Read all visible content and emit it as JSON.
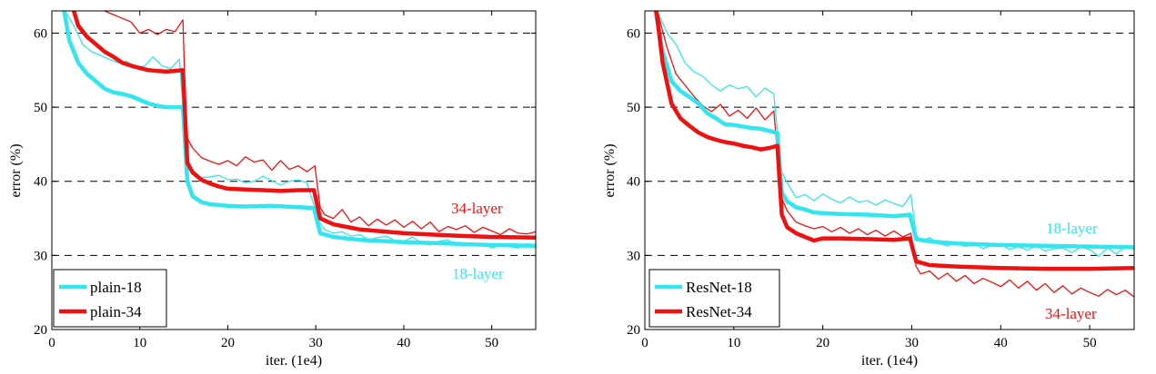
{
  "chart_data": [
    {
      "type": "line",
      "panel": "left",
      "xlabel": "iter. (1e4)",
      "ylabel": "error (%)",
      "xlim": [
        0,
        55
      ],
      "ylim": [
        20,
        63
      ],
      "xticks": [
        0,
        10,
        20,
        30,
        40,
        50
      ],
      "yticks": [
        20,
        30,
        40,
        50,
        60
      ],
      "grid": "horizontal-dashed",
      "legend": {
        "position": "bottom-left",
        "entries": [
          "plain-18",
          "plain-34"
        ]
      },
      "annotations": [
        {
          "text": "34-layer",
          "color": "#ee1111",
          "series": "plain-34"
        },
        {
          "text": "18-layer",
          "color": "#33e5ee",
          "series": "plain-18"
        }
      ],
      "series": [
        {
          "name": "plain-18",
          "role": "val",
          "color": "#33e5ee",
          "x": [
            1.4,
            2,
            3,
            4,
            5,
            6,
            7,
            8,
            9,
            10,
            11,
            12,
            13,
            14,
            14.9,
            15.4,
            16,
            17,
            18,
            20,
            22,
            25,
            28,
            29.8,
            30.5,
            32,
            35,
            40,
            45,
            50,
            55
          ],
          "y": [
            63,
            59,
            56,
            54.5,
            53.5,
            52.5,
            52,
            51.8,
            51.5,
            51,
            50.5,
            50.2,
            50,
            50,
            50,
            40,
            38,
            37.2,
            36.9,
            36.7,
            36.6,
            36.7,
            36.5,
            36.4,
            33,
            32.5,
            32.1,
            31.8,
            31.6,
            31.4,
            31.3
          ]
        },
        {
          "name": "plain-18",
          "role": "train",
          "color": "#33e5ee",
          "x": [
            1.5,
            2.5,
            3.5,
            4.5,
            5.5,
            6.5,
            7.5,
            8.5,
            9.5,
            10.5,
            11.5,
            12.5,
            13.5,
            14.5,
            15.3,
            16,
            17,
            18,
            19,
            20,
            21,
            22,
            23,
            24,
            25,
            26,
            27,
            28,
            29,
            30.4,
            31,
            32,
            33,
            34,
            35,
            36,
            37,
            38,
            39,
            40,
            41,
            42,
            43,
            44,
            45,
            46,
            47,
            48,
            49,
            50,
            51,
            52,
            53,
            54,
            55
          ],
          "y": [
            63,
            61,
            58.5,
            57.5,
            57,
            56.5,
            56,
            56.2,
            55.5,
            55.5,
            56.8,
            55.6,
            55.2,
            56.5,
            43,
            41.5,
            40.5,
            40.6,
            40.8,
            40.2,
            40.3,
            39.8,
            40.0,
            40.7,
            40.1,
            39.5,
            40.0,
            40.2,
            39.8,
            34.5,
            33.5,
            33.0,
            33.2,
            32.6,
            32.8,
            32.1,
            32.4,
            32.6,
            32.0,
            31.9,
            32.5,
            31.7,
            31.4,
            31.9,
            32.1,
            31.4,
            31.6,
            31.3,
            31.5,
            31.0,
            31.4,
            31.2,
            31.0,
            31.6,
            31.3
          ]
        },
        {
          "name": "plain-34",
          "role": "val",
          "color": "#ee1111",
          "x": [
            2.5,
            3,
            4,
            5,
            6,
            7,
            8,
            9,
            10,
            11,
            12,
            13,
            14,
            14.9,
            15.4,
            16,
            17,
            18,
            19,
            20,
            22,
            24,
            26,
            28,
            29.8,
            30.5,
            32,
            35,
            40,
            45,
            50,
            55
          ],
          "y": [
            63,
            61,
            59.5,
            58.5,
            57.5,
            56.8,
            56,
            55.6,
            55.3,
            55,
            54.9,
            54.8,
            54.9,
            55,
            42.5,
            41.2,
            40.2,
            39.7,
            39.3,
            39.0,
            38.9,
            38.8,
            38.7,
            38.8,
            38.8,
            35,
            34.2,
            33.5,
            33,
            32.7,
            32.5,
            32.4
          ]
        },
        {
          "name": "plain-34",
          "role": "train",
          "color": "#ee1111",
          "x": [
            6,
            7,
            8,
            9,
            10,
            11,
            12,
            13,
            14,
            14.9,
            15.3,
            16,
            17,
            18,
            19,
            20,
            21,
            22,
            23,
            24,
            25,
            26,
            27,
            28,
            29,
            29.9,
            30.5,
            31,
            32,
            33,
            34,
            35,
            36,
            37,
            38,
            39,
            40,
            41,
            42,
            43,
            44,
            45,
            46,
            47,
            48,
            49,
            50,
            51,
            52,
            53,
            54,
            55
          ],
          "y": [
            63,
            62.5,
            62,
            61.5,
            60,
            60.5,
            59.8,
            60.5,
            60.2,
            61.8,
            46,
            44.5,
            43.2,
            42.7,
            42.3,
            42.8,
            42.1,
            43.3,
            42.6,
            42.9,
            41.5,
            42.8,
            41.6,
            42.1,
            41.3,
            42.1,
            36.5,
            35.5,
            35.0,
            36.2,
            34.5,
            35.2,
            34.0,
            34.9,
            34.1,
            34.8,
            33.8,
            34.6,
            33.6,
            34.5,
            33.2,
            33.9,
            33.5,
            34.0,
            33.1,
            33.8,
            33.3,
            32.8,
            33.6,
            33.0,
            32.9,
            33.2
          ]
        }
      ]
    },
    {
      "type": "line",
      "panel": "right",
      "xlabel": "iter. (1e4)",
      "ylabel": "error (%)",
      "xlim": [
        0,
        55
      ],
      "ylim": [
        20,
        63
      ],
      "xticks": [
        0,
        10,
        20,
        30,
        40,
        50
      ],
      "yticks": [
        20,
        30,
        40,
        50,
        60
      ],
      "grid": "horizontal-dashed",
      "legend": {
        "position": "bottom-left",
        "entries": [
          "ResNet-18",
          "ResNet-34"
        ]
      },
      "annotations": [
        {
          "text": "18-layer",
          "color": "#33e5ee",
          "series": "ResNet-18"
        },
        {
          "text": "34-layer",
          "color": "#ee1111",
          "series": "ResNet-34"
        }
      ],
      "series": [
        {
          "name": "ResNet-18",
          "role": "val",
          "color": "#33e5ee",
          "x": [
            1.2,
            2,
            3,
            4,
            5,
            6,
            7,
            8,
            9,
            10,
            11,
            12,
            13,
            14,
            14.9,
            15.4,
            16,
            17,
            18,
            19,
            20,
            22,
            25,
            28,
            29.8,
            30.5,
            32,
            35,
            40,
            45,
            50,
            55
          ],
          "y": [
            63,
            57.5,
            53.5,
            52.2,
            51.4,
            50.5,
            49.2,
            48.5,
            47.7,
            47.6,
            47.4,
            47.2,
            47.1,
            46.8,
            46.5,
            38.5,
            37.3,
            36.5,
            36.2,
            35.8,
            35.7,
            35.6,
            35.5,
            35.3,
            35.5,
            32.2,
            31.9,
            31.6,
            31.4,
            31.3,
            31.2,
            31.1
          ]
        },
        {
          "name": "ResNet-18",
          "role": "train",
          "color": "#33e5ee",
          "x": [
            1.4,
            2.5,
            3.5,
            4.5,
            5.5,
            6.5,
            7.5,
            8.5,
            9.5,
            10.5,
            11.5,
            12.5,
            13.5,
            14.5,
            15.3,
            16,
            17,
            18,
            19,
            20,
            21,
            22,
            23,
            24,
            25,
            26,
            27,
            28,
            29,
            29.9,
            30.5,
            31,
            32,
            33,
            34,
            35,
            36,
            37,
            38,
            39,
            40,
            41,
            42,
            43,
            44,
            45,
            46,
            47,
            48,
            49,
            50,
            51,
            52,
            53,
            54,
            55
          ],
          "y": [
            63,
            60,
            58.5,
            56,
            54.8,
            54.2,
            53,
            52.2,
            53.0,
            52.5,
            52.8,
            51.4,
            52.6,
            51.8,
            41.5,
            39.8,
            37.8,
            38.2,
            37.4,
            38.3,
            37.6,
            37.1,
            37.9,
            37.2,
            37.4,
            36.8,
            37.5,
            37.0,
            36.6,
            38.2,
            32.8,
            31.9,
            32.4,
            31.6,
            31.3,
            31.8,
            31.2,
            31.6,
            30.9,
            31.4,
            31.5,
            30.8,
            31.2,
            30.7,
            31.3,
            30.6,
            30.9,
            31.0,
            30.4,
            31.1,
            30.8,
            29.9,
            31.0,
            30.2,
            31.2,
            30.8
          ]
        },
        {
          "name": "ResNet-34",
          "role": "val",
          "color": "#ee1111",
          "x": [
            1.3,
            2,
            3,
            4,
            5,
            6,
            7,
            8,
            9,
            10,
            11,
            12,
            13,
            14,
            14.9,
            15.4,
            16,
            17,
            18,
            19,
            20,
            22,
            25,
            28,
            29.8,
            30.5,
            32,
            35,
            40,
            45,
            50,
            55
          ],
          "y": [
            63,
            56,
            50.5,
            48.5,
            47.5,
            46.6,
            46,
            45.6,
            45.3,
            45.1,
            44.8,
            44.6,
            44.3,
            44.5,
            44.8,
            35.5,
            33.8,
            33,
            32.5,
            32,
            32.3,
            32.3,
            32.2,
            32.1,
            32.3,
            29.2,
            28.7,
            28.5,
            28.3,
            28.2,
            28.2,
            28.3
          ]
        },
        {
          "name": "ResNet-34",
          "role": "train",
          "color": "#ee1111",
          "x": [
            1.4,
            2.5,
            3.5,
            4.5,
            5.5,
            6.5,
            7.5,
            8.5,
            9.5,
            10.5,
            11.5,
            12.5,
            13.5,
            14.5,
            15.3,
            16,
            17,
            18,
            19,
            20,
            21,
            22,
            23,
            24,
            25,
            26,
            27,
            28,
            29,
            29.9,
            30.5,
            31,
            32,
            33,
            34,
            35,
            36,
            37,
            38,
            39,
            40,
            41,
            42,
            43,
            44,
            45,
            46,
            47,
            48,
            49,
            50,
            51,
            52,
            53,
            54,
            55
          ],
          "y": [
            63,
            58,
            54.5,
            53,
            51.5,
            50.2,
            49.4,
            50.4,
            48.8,
            49.6,
            48.5,
            49.9,
            48.3,
            49.5,
            38,
            36,
            34.5,
            34.0,
            33.6,
            33.9,
            33.2,
            33.8,
            33.0,
            33.6,
            32.8,
            33.4,
            32.6,
            33.3,
            32.5,
            33.0,
            28.5,
            27.5,
            27.9,
            26.8,
            27.6,
            26.5,
            27.3,
            26.2,
            26.9,
            26.4,
            25.8,
            26.7,
            25.6,
            26.5,
            25.3,
            26.2,
            25.0,
            25.9,
            24.8,
            25.6,
            25.0,
            24.5,
            25.4,
            24.7,
            25.3,
            24.4
          ]
        }
      ]
    }
  ]
}
